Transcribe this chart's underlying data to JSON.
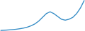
{
  "y_values": [
    2,
    2.2,
    2.5,
    2.8,
    3.2,
    3.8,
    4.5,
    5.5,
    7,
    9,
    12,
    16,
    20,
    22,
    20,
    17,
    14,
    13,
    14,
    16,
    20,
    26,
    34
  ],
  "line_color": "#3a8fc7",
  "linewidth": 1.0,
  "bg_color": "#ffffff",
  "figwidth": 1.2,
  "figheight": 0.45,
  "dpi": 100
}
